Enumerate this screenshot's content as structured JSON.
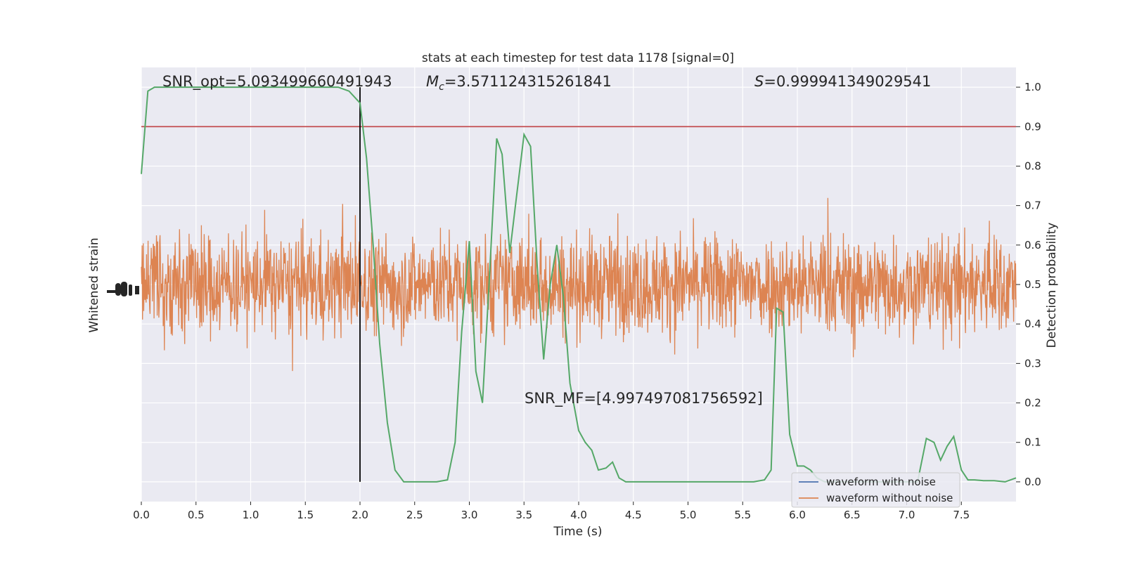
{
  "chart_data": {
    "type": "line",
    "title": "stats at each timestep for test data 1178 [signal=0]",
    "xlabel": "Time (s)",
    "ylabel_left": "Whitened strain",
    "ylabel_right": "Detection probability",
    "xlim": [
      0.0,
      8.0
    ],
    "ylim_right": [
      -0.05,
      1.05
    ],
    "x_ticks": [
      "0.0",
      "0.5",
      "1.0",
      "1.5",
      "2.0",
      "2.5",
      "3.0",
      "3.5",
      "4.0",
      "4.5",
      "5.0",
      "5.5",
      "6.0",
      "6.5",
      "7.0",
      "7.5"
    ],
    "x_tick_values": [
      0.0,
      0.5,
      1.0,
      1.5,
      2.0,
      2.5,
      3.0,
      3.5,
      4.0,
      4.5,
      5.0,
      5.5,
      6.0,
      6.5,
      7.0,
      7.5
    ],
    "y_right_ticks": [
      "0.0",
      "0.1",
      "0.2",
      "0.3",
      "0.4",
      "0.5",
      "0.6",
      "0.7",
      "0.8",
      "0.9",
      "1.0"
    ],
    "y_right_tick_values": [
      0.0,
      0.1,
      0.2,
      0.3,
      0.4,
      0.5,
      0.6,
      0.7,
      0.8,
      0.9,
      1.0
    ],
    "grid": true,
    "legend_position": "lower-right",
    "threshold": 0.9,
    "marker_time": 2.0,
    "annotations": {
      "snr_opt": "SNR_opt=5.093499660491943",
      "mc_symbol": "M",
      "mc_sub": "c",
      "mc_value": "=3.571124315261841",
      "s_symbol": "S",
      "s_value": "=0.999941349029541",
      "snr_mf": "SNR_MF=[4.997497081756592]"
    },
    "series": [
      {
        "name": "waveform with noise",
        "color": "#4c72b0",
        "kind": "strain"
      },
      {
        "name": "waveform without noise",
        "color": "#dd8452",
        "kind": "strain"
      },
      {
        "color": "#55a868",
        "kind": "probability",
        "x": [
          0.0,
          0.06,
          0.12,
          0.2,
          0.3,
          0.4,
          0.5,
          0.6,
          0.7,
          0.8,
          0.9,
          1.0,
          1.1,
          1.2,
          1.3,
          1.4,
          1.5,
          1.6,
          1.7,
          1.8,
          1.9,
          2.0,
          2.06,
          2.12,
          2.18,
          2.25,
          2.32,
          2.4,
          2.5,
          2.6,
          2.7,
          2.8,
          2.87,
          2.93,
          3.0,
          3.06,
          3.12,
          3.18,
          3.25,
          3.3,
          3.37,
          3.43,
          3.5,
          3.56,
          3.62,
          3.68,
          3.74,
          3.8,
          3.86,
          3.92,
          4.0,
          4.06,
          4.12,
          4.18,
          4.25,
          4.31,
          4.37,
          4.43,
          4.5,
          4.6,
          4.8,
          5.0,
          5.3,
          5.6,
          5.7,
          5.76,
          5.81,
          5.87,
          5.93,
          6.0,
          6.06,
          6.12,
          6.18,
          6.25,
          6.3,
          6.4,
          6.6,
          6.8,
          7.0,
          7.1,
          7.18,
          7.25,
          7.31,
          7.37,
          7.43,
          7.5,
          7.56,
          7.62,
          7.7,
          7.8,
          7.9,
          8.0
        ],
        "values": [
          0.78,
          0.99,
          1.0,
          1.0,
          1.0,
          1.0,
          1.0,
          1.0,
          1.0,
          1.0,
          1.0,
          1.0,
          1.0,
          1.0,
          1.0,
          1.0,
          1.0,
          1.0,
          1.0,
          1.0,
          0.99,
          0.96,
          0.82,
          0.6,
          0.35,
          0.15,
          0.03,
          0.0,
          0.0,
          0.0,
          0.0,
          0.005,
          0.1,
          0.38,
          0.61,
          0.28,
          0.2,
          0.5,
          0.87,
          0.83,
          0.58,
          0.72,
          0.88,
          0.85,
          0.55,
          0.31,
          0.5,
          0.6,
          0.47,
          0.25,
          0.13,
          0.1,
          0.08,
          0.03,
          0.035,
          0.05,
          0.01,
          0.0,
          0.0,
          0.0,
          0.0,
          0.0,
          0.0,
          0.0,
          0.005,
          0.03,
          0.44,
          0.43,
          0.12,
          0.04,
          0.04,
          0.03,
          0.01,
          0.0,
          0.0,
          0.0,
          0.0,
          0.0,
          0.0,
          0.0,
          0.11,
          0.1,
          0.055,
          0.09,
          0.115,
          0.03,
          0.005,
          0.005,
          0.003,
          0.003,
          0.0,
          0.01
        ]
      }
    ]
  }
}
